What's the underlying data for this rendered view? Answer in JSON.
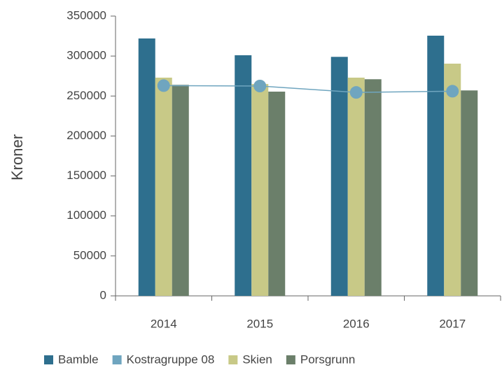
{
  "chart_data": {
    "type": "bar",
    "y_label": "Kroner",
    "categories": [
      "2014",
      "2015",
      "2016",
      "2017"
    ],
    "series": [
      {
        "name": "Bamble",
        "type": "bar",
        "color": "#2e6f8e",
        "values": [
          322000,
          301000,
          299000,
          325500
        ]
      },
      {
        "name": "Kostragruppe 08",
        "type": "line",
        "color": "#6fa5bf",
        "values": [
          263000,
          262500,
          254500,
          256000
        ]
      },
      {
        "name": "Skien",
        "type": "bar",
        "color": "#c8c987",
        "values": [
          273000,
          265000,
          273000,
          290500
        ]
      },
      {
        "name": "Porsgrunn",
        "type": "bar",
        "color": "#6b7f6a",
        "values": [
          264000,
          255500,
          271000,
          257000
        ]
      }
    ],
    "ylim": [
      0,
      350000
    ],
    "yticks": [
      0,
      50000,
      100000,
      150000,
      200000,
      250000,
      300000,
      350000
    ],
    "grid": false,
    "legend": "bottom"
  }
}
